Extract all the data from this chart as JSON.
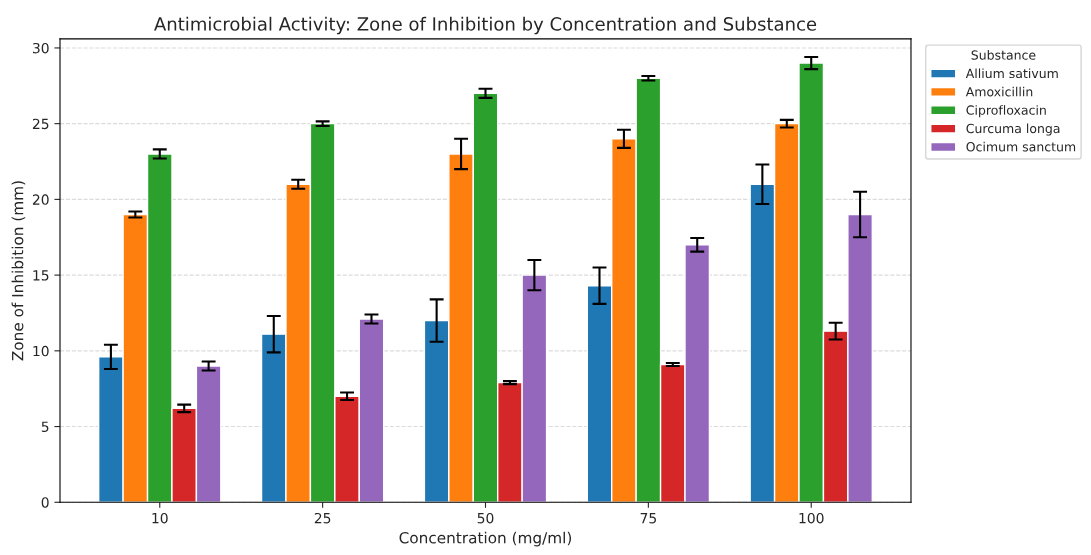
{
  "chart_data": {
    "type": "bar",
    "title": "Antimicrobial Activity: Zone of Inhibition by Concentration and Substance",
    "xlabel": "Concentration (mg/ml)",
    "ylabel": "Zone of Inhibition (mm)",
    "legend_title": "Substance",
    "categories": [
      "10",
      "25",
      "50",
      "75",
      "100"
    ],
    "series": [
      {
        "name": "Allium sativum",
        "color": "#1f77b4",
        "values": [
          9.6,
          11.1,
          12.0,
          14.3,
          21.0
        ],
        "errors": [
          0.8,
          1.2,
          1.4,
          1.2,
          1.3
        ]
      },
      {
        "name": "Amoxicillin",
        "color": "#ff7f0e",
        "values": [
          19.0,
          21.0,
          23.0,
          24.0,
          25.0
        ],
        "errors": [
          0.2,
          0.3,
          1.0,
          0.6,
          0.25
        ]
      },
      {
        "name": "Ciprofloxacin",
        "color": "#2ca02c",
        "values": [
          23.0,
          25.0,
          27.0,
          28.0,
          29.0
        ],
        "errors": [
          0.3,
          0.15,
          0.3,
          0.15,
          0.4
        ]
      },
      {
        "name": "Curcuma longa",
        "color": "#d62728",
        "values": [
          6.2,
          7.0,
          7.9,
          9.1,
          11.3
        ],
        "errors": [
          0.25,
          0.25,
          0.1,
          0.1,
          0.55
        ]
      },
      {
        "name": "Ocimum sanctum",
        "color": "#9467bd",
        "values": [
          9.0,
          12.1,
          15.0,
          17.0,
          19.0
        ],
        "errors": [
          0.3,
          0.3,
          1.0,
          0.45,
          1.5
        ]
      }
    ],
    "ylim": [
      0,
      30.6
    ],
    "yticks": [
      0,
      5,
      10,
      15,
      20,
      25,
      30
    ],
    "grid": "y",
    "legend": "top right"
  }
}
